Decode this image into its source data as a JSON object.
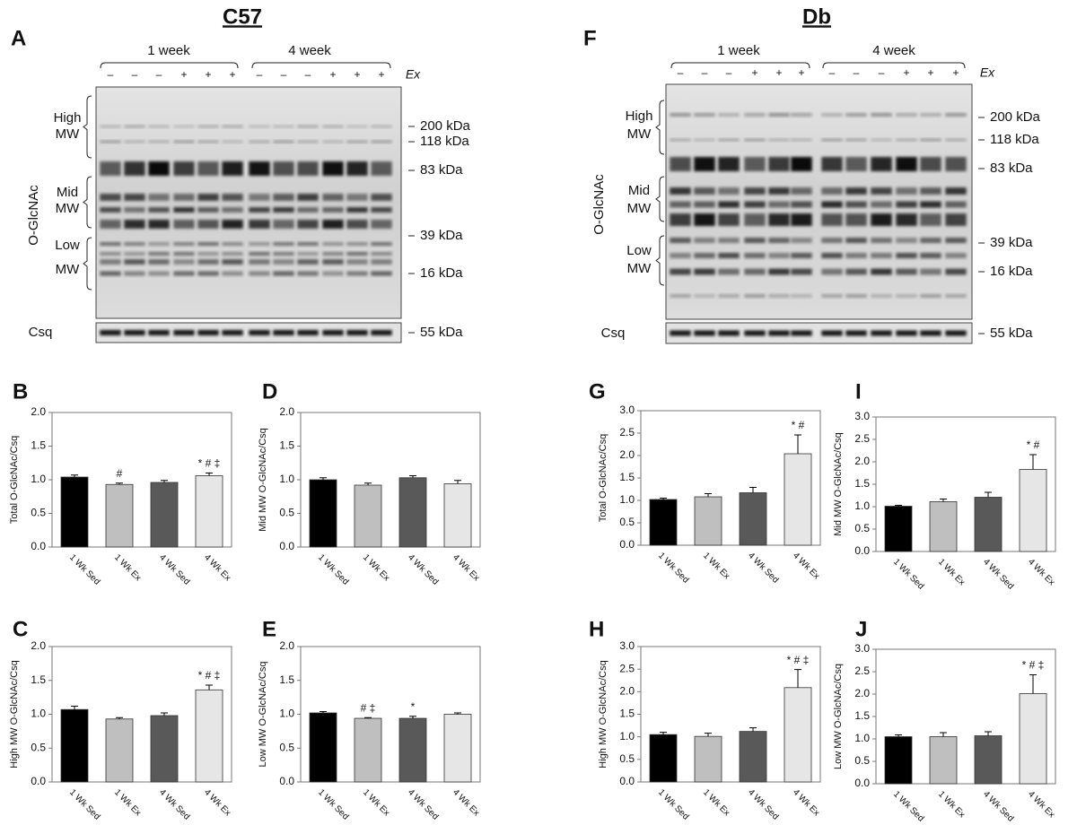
{
  "blots": [
    {
      "title": "C57",
      "panel": "A",
      "groups": [
        "1 week",
        "4 week"
      ],
      "ex": [
        "–",
        "–",
        "–",
        "+",
        "+",
        "+",
        "–",
        "–",
        "–",
        "+",
        "+",
        "+"
      ],
      "ex_label": "Ex",
      "probe": "O-GlcNAc",
      "regions": [
        [
          "High",
          "MW"
        ],
        [
          "Mid",
          "MW"
        ],
        [
          "Low",
          "MW"
        ]
      ],
      "markers": [
        "200 kDa",
        "118 kDa",
        "83 kDa",
        "39 kDa",
        "16 kDa"
      ],
      "loading": "Csq",
      "loading_marker": "55 kDa"
    },
    {
      "title": "Db",
      "panel": "F",
      "groups": [
        "1 week",
        "4 week"
      ],
      "ex": [
        "–",
        "–",
        "–",
        "+",
        "+",
        "+",
        "–",
        "–",
        "–",
        "+",
        "+",
        "+"
      ],
      "ex_label": "Ex",
      "probe": "O-GlcNAc",
      "regions": [
        [
          "High",
          "MW"
        ],
        [
          "Mid",
          "MW"
        ],
        [
          "Low",
          "MW"
        ]
      ],
      "markers": [
        "200 kDa",
        "118 kDa",
        "83 kDa",
        "39 kDa",
        "16 kDa"
      ],
      "loading": "Csq",
      "loading_marker": "55 kDa"
    }
  ],
  "chart_data": [
    {
      "type": "bar",
      "panel": "B",
      "ylabel": "Total O-GlcNAc/Csq",
      "categories": [
        "1 Wk Sed",
        "1 Wk Ex",
        "4 Wk Sed",
        "4 Wk Ex"
      ],
      "values": [
        1.04,
        0.93,
        0.96,
        1.06
      ],
      "errors": [
        0.03,
        0.02,
        0.03,
        0.04
      ],
      "annotations": [
        null,
        "#",
        null,
        "* # ‡"
      ],
      "colors": [
        "#000000",
        "#bfbfbf",
        "#595959",
        "#e6e6e6"
      ],
      "ylim": [
        0,
        2
      ],
      "yticks": [
        {
          "value": 0,
          "label": "0.0"
        },
        {
          "value": 0.5,
          "label": "0.5"
        },
        {
          "value": 1,
          "label": "1.0"
        },
        {
          "value": 1.5,
          "label": "1.5"
        },
        {
          "value": 2,
          "label": "2.0"
        }
      ]
    },
    {
      "type": "bar",
      "panel": "D",
      "ylabel": "Mid MW O-GlcNAc/Csq",
      "categories": [
        "1 Wk Sed",
        "1 Wk Ex",
        "4 Wk Sed",
        "4 Wk Ex"
      ],
      "values": [
        1.0,
        0.92,
        1.03,
        0.94
      ],
      "errors": [
        0.03,
        0.03,
        0.03,
        0.05
      ],
      "annotations": [
        null,
        null,
        null,
        null
      ],
      "colors": [
        "#000000",
        "#bfbfbf",
        "#595959",
        "#e6e6e6"
      ],
      "ylim": [
        0,
        2
      ],
      "yticks": [
        {
          "value": 0,
          "label": "0.0"
        },
        {
          "value": 0.5,
          "label": "0.5"
        },
        {
          "value": 1,
          "label": "1.0"
        },
        {
          "value": 1.5,
          "label": "1.5"
        },
        {
          "value": 2,
          "label": "2.0"
        }
      ]
    },
    {
      "type": "bar",
      "panel": "C",
      "ylabel": "High MW O-GlcNAc/Csq",
      "categories": [
        "1 Wk Sed",
        "1 Wk Ex",
        "4 Wk Sed",
        "4 Wk Ex"
      ],
      "values": [
        1.07,
        0.93,
        0.98,
        1.36
      ],
      "errors": [
        0.05,
        0.02,
        0.04,
        0.07
      ],
      "annotations": [
        null,
        null,
        null,
        "* # ‡"
      ],
      "colors": [
        "#000000",
        "#bfbfbf",
        "#595959",
        "#e6e6e6"
      ],
      "ylim": [
        0,
        2
      ],
      "yticks": [
        {
          "value": 0,
          "label": "0.0"
        },
        {
          "value": 0.5,
          "label": "0.5"
        },
        {
          "value": 1,
          "label": "1.0"
        },
        {
          "value": 1.5,
          "label": "1.5"
        },
        {
          "value": 2,
          "label": "2.0"
        }
      ]
    },
    {
      "type": "bar",
      "panel": "E",
      "ylabel": "Low MW O-GlcNAc/Csq",
      "categories": [
        "1 Wk Sed",
        "1 Wk Ex",
        "4 Wk Sed",
        "4 Wk Ex"
      ],
      "values": [
        1.02,
        0.94,
        0.94,
        1.0
      ],
      "errors": [
        0.02,
        0.01,
        0.03,
        0.02
      ],
      "annotations": [
        null,
        "# ‡",
        "*",
        null
      ],
      "colors": [
        "#000000",
        "#bfbfbf",
        "#595959",
        "#e6e6e6"
      ],
      "ylim": [
        0,
        2
      ],
      "yticks": [
        {
          "value": 0,
          "label": "0.0"
        },
        {
          "value": 0.5,
          "label": "0.5"
        },
        {
          "value": 1,
          "label": "1.0"
        },
        {
          "value": 1.5,
          "label": "1.5"
        },
        {
          "value": 2,
          "label": "2.0"
        }
      ]
    },
    {
      "type": "bar",
      "panel": "G",
      "ylabel": "Total O-GlcNAc/Csq",
      "categories": [
        "1 Wk Sed",
        "1 Wk Ex",
        "4 Wk Sed",
        "4 Wk Ex"
      ],
      "values": [
        1.02,
        1.08,
        1.17,
        2.04
      ],
      "errors": [
        0.03,
        0.07,
        0.12,
        0.42
      ],
      "annotations": [
        null,
        null,
        null,
        "* #"
      ],
      "colors": [
        "#000000",
        "#bfbfbf",
        "#595959",
        "#e6e6e6"
      ],
      "ylim": [
        0,
        3
      ],
      "yticks": [
        {
          "value": 0,
          "label": "0.0"
        },
        {
          "value": 0.5,
          "label": "0.5"
        },
        {
          "value": 1,
          "label": "1.0"
        },
        {
          "value": 1.5,
          "label": "1.5"
        },
        {
          "value": 2,
          "label": "2.0"
        },
        {
          "value": 2.5,
          "label": "2.5"
        },
        {
          "value": 3,
          "label": "3.0"
        }
      ]
    },
    {
      "type": "bar",
      "panel": "I",
      "ylabel": "Mid MW O-GlcNAc/Csq",
      "categories": [
        "1 Wk Sed",
        "1 Wk Ex",
        "4 Wk Sed",
        "4 Wk Ex"
      ],
      "values": [
        1.01,
        1.11,
        1.21,
        1.83
      ],
      "errors": [
        0.02,
        0.06,
        0.11,
        0.33
      ],
      "annotations": [
        null,
        null,
        null,
        "* #"
      ],
      "colors": [
        "#000000",
        "#bfbfbf",
        "#595959",
        "#e6e6e6"
      ],
      "ylim": [
        0,
        3
      ],
      "yticks": [
        {
          "value": 0,
          "label": "0.0"
        },
        {
          "value": 0.5,
          "label": "0.5"
        },
        {
          "value": 1,
          "label": "1.0"
        },
        {
          "value": 1.5,
          "label": "1.5"
        },
        {
          "value": 2,
          "label": "2.0"
        },
        {
          "value": 2.5,
          "label": "2.5"
        },
        {
          "value": 3,
          "label": "3.0"
        }
      ]
    },
    {
      "type": "bar",
      "panel": "H",
      "ylabel": "High MW O-GlcNAc/Csq",
      "categories": [
        "1 Wk Sed",
        "1 Wk Ex",
        "4 Wk Sed",
        "4 Wk Ex"
      ],
      "values": [
        1.05,
        1.01,
        1.12,
        2.09
      ],
      "errors": [
        0.05,
        0.07,
        0.08,
        0.4
      ],
      "annotations": [
        null,
        null,
        null,
        "* # ‡"
      ],
      "colors": [
        "#000000",
        "#bfbfbf",
        "#595959",
        "#e6e6e6"
      ],
      "ylim": [
        0,
        3
      ],
      "yticks": [
        {
          "value": 0,
          "label": "0.0"
        },
        {
          "value": 0.5,
          "label": "0.5"
        },
        {
          "value": 1,
          "label": "1.0"
        },
        {
          "value": 1.5,
          "label": "1.5"
        },
        {
          "value": 2,
          "label": "2.0"
        },
        {
          "value": 2.5,
          "label": "2.5"
        },
        {
          "value": 3,
          "label": "3.0"
        }
      ]
    },
    {
      "type": "bar",
      "panel": "J",
      "ylabel": "Low MW O-GlcNAc/Csq",
      "categories": [
        "1 Wk Sed",
        "1 Wk Ex",
        "4 Wk Sed",
        "4 Wk Ex"
      ],
      "values": [
        1.05,
        1.05,
        1.07,
        2.01
      ],
      "errors": [
        0.04,
        0.09,
        0.09,
        0.42
      ],
      "annotations": [
        null,
        null,
        null,
        "* # ‡"
      ],
      "colors": [
        "#000000",
        "#bfbfbf",
        "#595959",
        "#e6e6e6"
      ],
      "ylim": [
        0,
        3
      ],
      "yticks": [
        {
          "value": 0,
          "label": "0.0"
        },
        {
          "value": 0.5,
          "label": "0.5"
        },
        {
          "value": 1,
          "label": "1.0"
        },
        {
          "value": 1.5,
          "label": "1.5"
        },
        {
          "value": 2,
          "label": "2.0"
        },
        {
          "value": 2.5,
          "label": "2.5"
        },
        {
          "value": 3,
          "label": "3.0"
        }
      ]
    }
  ]
}
